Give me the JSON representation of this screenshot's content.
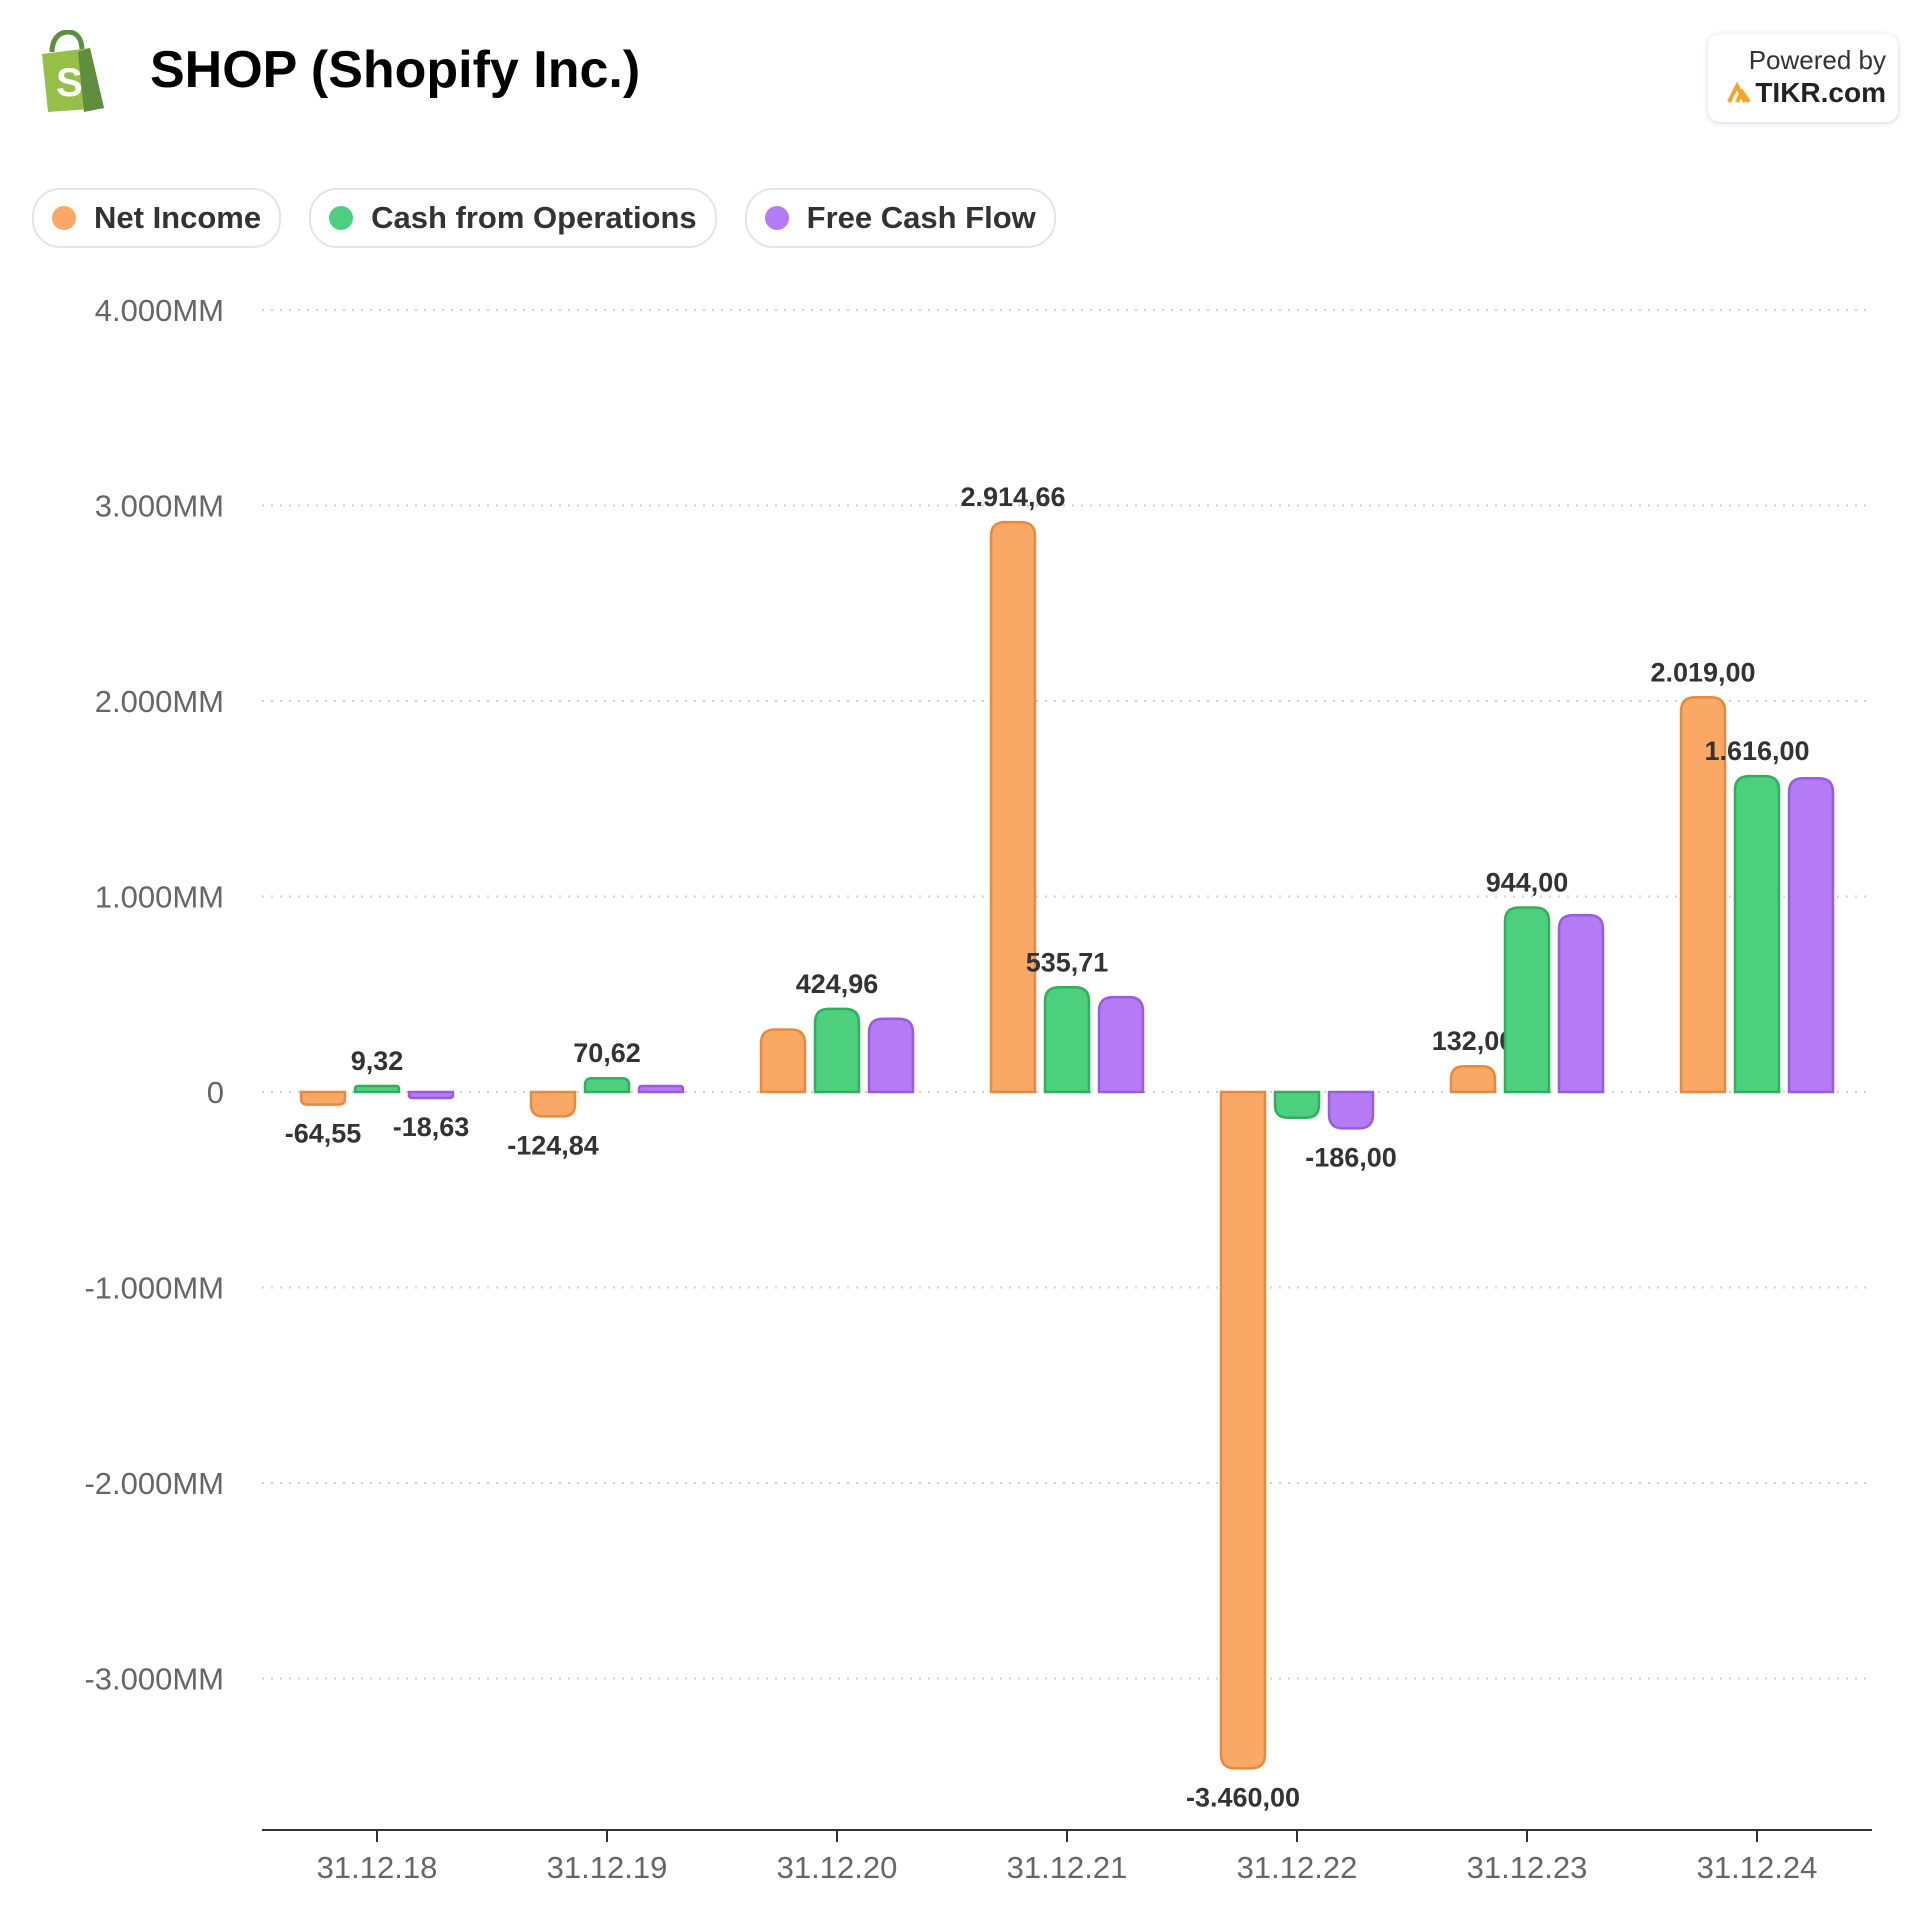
{
  "header": {
    "title": "SHOP (Shopify Inc.)",
    "powered_by_label": "Powered by",
    "powered_by_brand": "TIKR.com",
    "logo_icon": "shopify-bag-icon",
    "brand_icon": "tikr-logo-icon"
  },
  "colors": {
    "net_income": "#F9A866",
    "net_income_stroke": "#E8893E",
    "cfo": "#4CD07D",
    "cfo_stroke": "#2FAE5C",
    "fcf": "#B57BF4",
    "fcf_stroke": "#9A5BE0",
    "grid": "#cfcfcf",
    "axis": "#333333",
    "tick_text": "#666666",
    "label_text": "#333333"
  },
  "chart_data": {
    "type": "bar",
    "title": "SHOP (Shopify Inc.)",
    "xlabel": "",
    "ylabel": "",
    "ylim": [
      -3750,
      4000
    ],
    "yticks": [
      4000,
      3000,
      2000,
      1000,
      0,
      -1000,
      -2000,
      -3000
    ],
    "ytick_labels": [
      "4.000MM",
      "3.000MM",
      "2.000MM",
      "1.000MM",
      "0",
      "-1.000MM",
      "-2.000MM",
      "-3.000MM"
    ],
    "grid": true,
    "legend_position": "top-left",
    "categories": [
      "31.12.18",
      "31.12.19",
      "31.12.20",
      "31.12.21",
      "31.12.22",
      "31.12.23",
      "31.12.24"
    ],
    "series": [
      {
        "key": "net_income",
        "name": "Net Income",
        "values": [
          -64.55,
          -124.84,
          319.5,
          2914.66,
          -3460.0,
          132.0,
          2019.0
        ],
        "labels": [
          "-64,55",
          "-124,84",
          "",
          "2.914,66",
          "-3.460,00",
          "132,00",
          "2.019,00"
        ]
      },
      {
        "key": "cfo",
        "name": "Cash from Operations",
        "values": [
          9.32,
          70.62,
          424.96,
          535.71,
          -132.0,
          944.0,
          1616.0
        ],
        "labels": [
          "9,32",
          "70,62",
          "424,96",
          "535,71",
          "",
          "944,00",
          "1.616,00"
        ]
      },
      {
        "key": "fcf",
        "name": "Free Cash Flow",
        "values": [
          -18.63,
          16.0,
          375.0,
          485.0,
          -186.0,
          905.0,
          1605.0
        ],
        "labels": [
          "-18,63",
          "",
          "",
          "",
          "-186,00",
          "",
          ""
        ]
      }
    ]
  }
}
